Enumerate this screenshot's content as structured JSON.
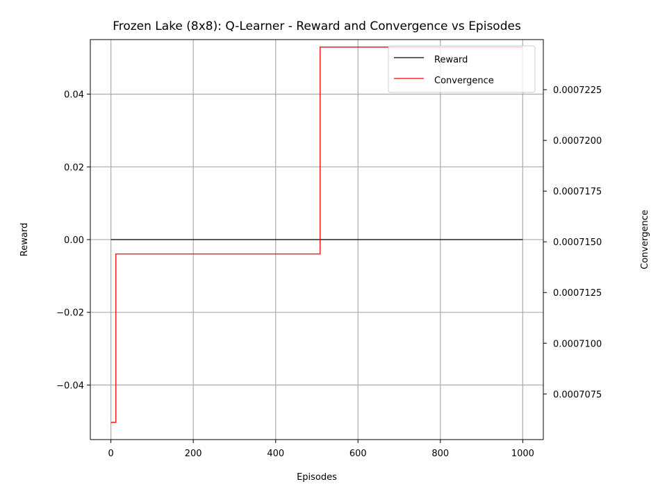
{
  "chart_data": {
    "type": "line",
    "title": "Frozen Lake (8x8): Q-Learner - Reward and Convergence vs Episodes",
    "xlabel": "Episodes",
    "ylabel": "Reward",
    "y2label": "Convergence",
    "xlim": [
      -50,
      1050
    ],
    "ylim": [
      -0.055,
      0.055
    ],
    "y2lim": [
      0.00070525,
      0.00072497
    ],
    "xticks": [
      0,
      200,
      400,
      600,
      800,
      1000
    ],
    "xtick_labels": [
      "0",
      "200",
      "400",
      "600",
      "800",
      "1000"
    ],
    "yticks": [
      -0.04,
      -0.02,
      0.0,
      0.02,
      0.04
    ],
    "ytick_labels": [
      "−0.04",
      "−0.02",
      "0.00",
      "0.02",
      "0.04"
    ],
    "y2ticks": [
      0.0007075,
      0.00071,
      0.0007125,
      0.000715,
      0.0007175,
      0.00072,
      0.0007225
    ],
    "y2tick_labels": [
      "0.0007075",
      "0.0007100",
      "0.0007125",
      "0.0007150",
      "0.0007175",
      "0.0007200",
      "0.0007225"
    ],
    "grid": true,
    "legend_position": "top-right",
    "series": [
      {
        "name": "Reward",
        "color": "#000000",
        "axis": "left",
        "x": [
          0,
          1000
        ],
        "y": [
          0.0,
          0.0
        ]
      },
      {
        "name": "Convergence",
        "color": "#ff0000",
        "axis": "right",
        "step": true,
        "x": [
          0,
          12,
          12,
          508,
          508,
          1000
        ],
        "y": [
          0.0007061,
          0.0007061,
          0.0007144,
          0.0007144,
          0.0007246,
          0.0007246
        ]
      }
    ]
  }
}
